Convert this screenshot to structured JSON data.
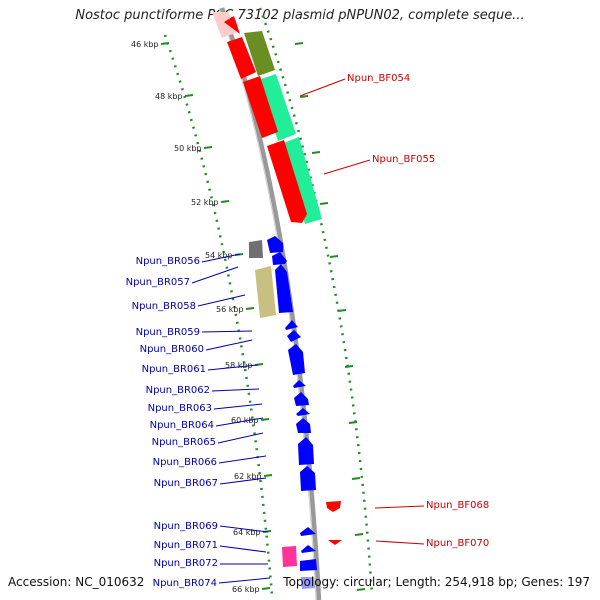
{
  "header": {
    "title": "Nostoc punctiforme PCC 73102 plasmid pNPUN02, complete seque..."
  },
  "footer": {
    "accession": "Accession: NC_010632",
    "topology": "Topology: circular; Length: 254,918 bp; Genes: 197"
  },
  "colors": {
    "reverse_label": "#0000aa",
    "forward_label": "#cc0000",
    "reverse_gene": "#0000ff",
    "forward_gene": "#ff0000",
    "cog_green": "#22ee99",
    "cog_olive": "#6b8e23",
    "cog_khaki": "#c8c080",
    "cog_gray": "#707070",
    "cog_pink": "#ff3399",
    "tick_green": "#228b22",
    "backbone": "#999999"
  },
  "axis": {
    "unit": "kbp",
    "ticks": [
      {
        "kbp": 46,
        "label": "46 kbp"
      },
      {
        "kbp": 48,
        "label": "48 kbp"
      },
      {
        "kbp": 50,
        "label": "50 kbp"
      },
      {
        "kbp": 52,
        "label": "52 kbp"
      },
      {
        "kbp": 54,
        "label": "54 kbp"
      },
      {
        "kbp": 56,
        "label": "56 kbp"
      },
      {
        "kbp": 58,
        "label": "58 kbp"
      },
      {
        "kbp": 60,
        "label": "60 kbp"
      },
      {
        "kbp": 62,
        "label": "62 kbp"
      },
      {
        "kbp": 64,
        "label": "64 kbp"
      },
      {
        "kbp": 66,
        "label": "66 kbp"
      }
    ]
  },
  "genes": {
    "forward": [
      {
        "label": "Npun_BF054"
      },
      {
        "label": "Npun_BF055"
      },
      {
        "label": "Npun_BF068"
      },
      {
        "label": "Npun_BF070"
      }
    ],
    "reverse": [
      {
        "label": "Npun_BR056"
      },
      {
        "label": "Npun_BR057"
      },
      {
        "label": "Npun_BR058"
      },
      {
        "label": "Npun_BR059"
      },
      {
        "label": "Npun_BR060"
      },
      {
        "label": "Npun_BR061"
      },
      {
        "label": "Npun_BR062"
      },
      {
        "label": "Npun_BR063"
      },
      {
        "label": "Npun_BR064"
      },
      {
        "label": "Npun_BR065"
      },
      {
        "label": "Npun_BR066"
      },
      {
        "label": "Npun_BR067"
      },
      {
        "label": "Npun_BR069"
      },
      {
        "label": "Npun_BR071"
      },
      {
        "label": "Npun_BR072"
      },
      {
        "label": "Npun_BR074"
      }
    ]
  }
}
